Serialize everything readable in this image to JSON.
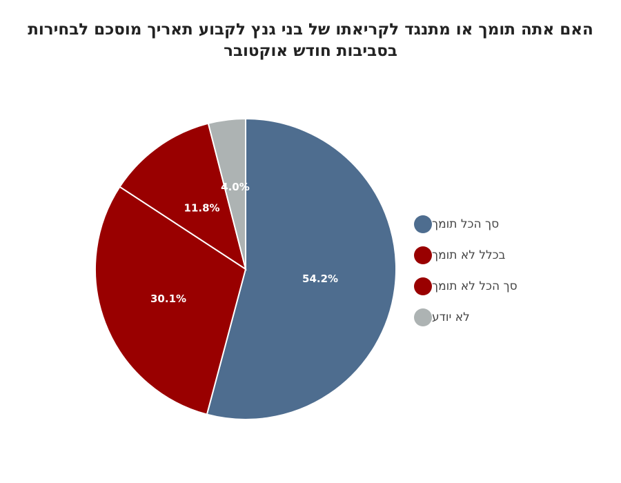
{
  "chart_data": {
    "type": "pie",
    "title_lines": [
      "האם אתה תומך או מתנגד לקריאתו של בני גנץ לקבוע תאריך מוסכם לבחירות",
      "בסביבות חודש אוקטובר"
    ],
    "legend_position": "right",
    "slices": [
      {
        "label": "סך הכל תומך",
        "value": 54.2,
        "display": "54.2%",
        "color": "#4e6d8f"
      },
      {
        "label": "בכלל לא תומך",
        "value": 30.1,
        "display": "30.1%",
        "color": "#990000"
      },
      {
        "label": "סך הכל לא תומך",
        "value": 11.8,
        "display": "11.8%",
        "color": "#990000"
      },
      {
        "label": "לא יודע",
        "value": 4.0,
        "display": "4.0%",
        "color": "#adb3b3"
      }
    ]
  }
}
